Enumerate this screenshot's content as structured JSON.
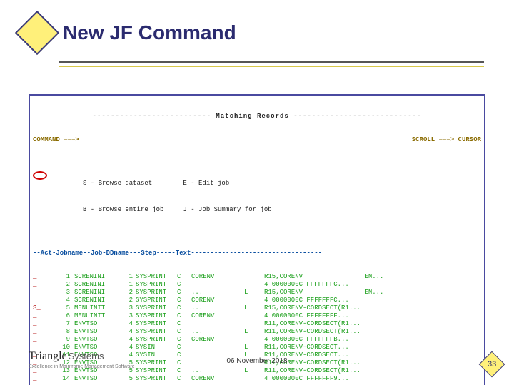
{
  "colors": {
    "title": "#2b2b6f",
    "diamond_fill": "#fff07a",
    "diamond_border": "#3a3a7d",
    "rule_dark": "#555555",
    "rule_gold": "#d8c84a",
    "term_border": "#4a4aa0",
    "term_green": "#1da01d",
    "term_blue": "#0a4fa0",
    "term_amber": "#8a6b00",
    "term_red_act": "#b00000",
    "circle_red": "#d00000"
  },
  "title": "New JF Command",
  "terminal": {
    "panel_title": "Matching Records",
    "command_label": "COMMAND ===>",
    "command_value": "",
    "scroll_label": "SCROLL ===>",
    "scroll_value": "CURSOR",
    "legend1": "S - Browse dataset        E - Edit job",
    "legend2": "B - Browse entire job     J - Job Summary for job",
    "header": "--Act-Jobname--Job-DDname---Step-----Text----------------------------------",
    "rows": [
      {
        "act": "_",
        "idx": "1",
        "job": "SCRENINI",
        "jn": "1",
        "dd": "SYSPRINT",
        "stp": "C",
        "txt": "CORENV",
        "flg": "",
        "tail": "R15,CORENV                EN..."
      },
      {
        "act": "_",
        "idx": "2",
        "job": "SCRENINI",
        "jn": "1",
        "dd": "SYSPRINT",
        "stp": "C",
        "txt": "",
        "flg": "",
        "tail": "4 0000000C FFFFFFFC..."
      },
      {
        "act": "_",
        "idx": "3",
        "job": "SCRENINI",
        "jn": "2",
        "dd": "SYSPRINT",
        "stp": "C",
        "txt": "...",
        "flg": "L",
        "tail": "R15,CORENV                EN..."
      },
      {
        "act": "_",
        "idx": "4",
        "job": "SCRENINI",
        "jn": "2",
        "dd": "SYSPRINT",
        "stp": "C",
        "txt": "CORENV",
        "flg": "",
        "tail": "4 0000000C FFFFFFFC..."
      },
      {
        "act": "S_",
        "idx": "5",
        "job": "MENUINIT",
        "jn": "3",
        "dd": "SYSPRINT",
        "stp": "C",
        "txt": "...",
        "flg": "L",
        "tail": "R15,CORENV-CORDSECT(R1..."
      },
      {
        "act": "_",
        "idx": "6",
        "job": "MENUINIT",
        "jn": "3",
        "dd": "SYSPRINT",
        "stp": "C",
        "txt": "CORENV",
        "flg": "",
        "tail": "4 0000000C FFFFFFFF..."
      },
      {
        "act": "_",
        "idx": "7",
        "job": "ENVTSO",
        "jn": "4",
        "dd": "SYSPRINT",
        "stp": "C",
        "txt": "",
        "flg": "",
        "tail": "R11,CORENV-CORDSECT(R1..."
      },
      {
        "act": "_",
        "idx": "8",
        "job": "ENVTSO",
        "jn": "4",
        "dd": "SYSPRINT",
        "stp": "C",
        "txt": "...",
        "flg": "L",
        "tail": "R11,CORENV-CORDSECT(R1..."
      },
      {
        "act": "_",
        "idx": "9",
        "job": "ENVTSO",
        "jn": "4",
        "dd": "SYSPRINT",
        "stp": "C",
        "txt": "CORENV",
        "flg": "",
        "tail": "4 0000000C FFFFFFFB..."
      },
      {
        "act": "_",
        "idx": "10",
        "job": "ENVTSO",
        "jn": "4",
        "dd": "SYSIN",
        "stp": "C",
        "txt": "",
        "flg": "L",
        "tail": "R11,CORENV-CORDSECT..."
      },
      {
        "act": "_",
        "idx": "11",
        "job": "ENVTSO",
        "jn": "4",
        "dd": "SYSIN",
        "stp": "C",
        "txt": "",
        "flg": "L",
        "tail": "R11,CORENV-CORDSECT..."
      },
      {
        "act": "_",
        "idx": "12",
        "job": "ENVTSO",
        "jn": "5",
        "dd": "SYSPRINT",
        "stp": "C",
        "txt": "",
        "flg": "",
        "tail": "R11,CORENV-CORDSECT(R1..."
      },
      {
        "act": "_",
        "idx": "13",
        "job": "ENVTSO",
        "jn": "5",
        "dd": "SYSPRINT",
        "stp": "C",
        "txt": "...",
        "flg": "L",
        "tail": "R11,CORENV-CORDSECT(R1..."
      },
      {
        "act": "_",
        "idx": "14",
        "job": "ENVTSO",
        "jn": "5",
        "dd": "SYSPRINT",
        "stp": "C",
        "txt": "CORENV",
        "flg": "",
        "tail": "4 0000000C FFFFFFF9..."
      }
    ],
    "highlighted_row_index": 4
  },
  "footer": {
    "logo_line1_a": "Triangle",
    "logo_line1_b": "Systems",
    "logo_line2": "Excellence in Mainframe Management Software",
    "date": "06 November 2018",
    "page": "33"
  }
}
